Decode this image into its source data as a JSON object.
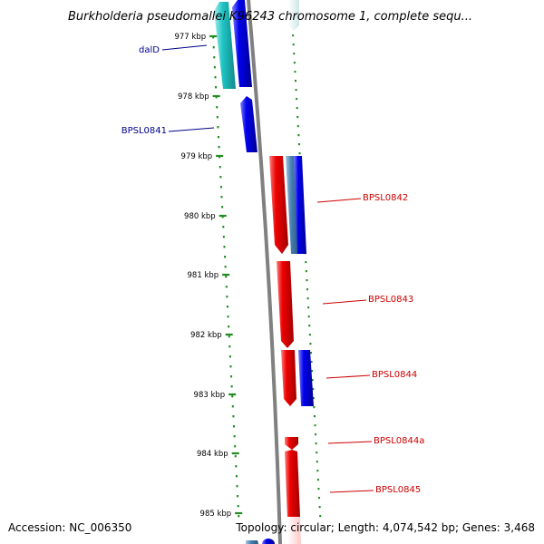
{
  "title": "Burkholderia pseudomallei K96243 chromosome 1, complete sequ...",
  "footer": {
    "accession": "Accession: NC_006350",
    "topology": "Topology: circular; Length: 4,074,542 bp; Genes: 3,468"
  },
  "ticks": [
    "977 kbp",
    "978 kbp",
    "979 kbp",
    "980 kbp",
    "981 kbp",
    "982 kbp",
    "983 kbp",
    "984 kbp",
    "985 kbp"
  ],
  "gene_labels": [
    {
      "name": "dalD",
      "strand": "forward"
    },
    {
      "name": "BPSL0841",
      "strand": "forward"
    },
    {
      "name": "BPSL0842",
      "strand": "reverse"
    },
    {
      "name": "BPSL0843",
      "strand": "reverse"
    },
    {
      "name": "BPSL0844",
      "strand": "reverse"
    },
    {
      "name": "BPSL0844a",
      "strand": "reverse"
    },
    {
      "name": "BPSL0845",
      "strand": "reverse"
    }
  ],
  "colors": {
    "forward_label": "#00008b",
    "reverse_label": "#cc0000",
    "forward_gene": "#0000ee",
    "reverse_gene": "#ee0000",
    "cyan_gene": "#20c4c4",
    "steel_gene": "#4682b4",
    "tick": "#228b22",
    "backbone": "#808080"
  }
}
